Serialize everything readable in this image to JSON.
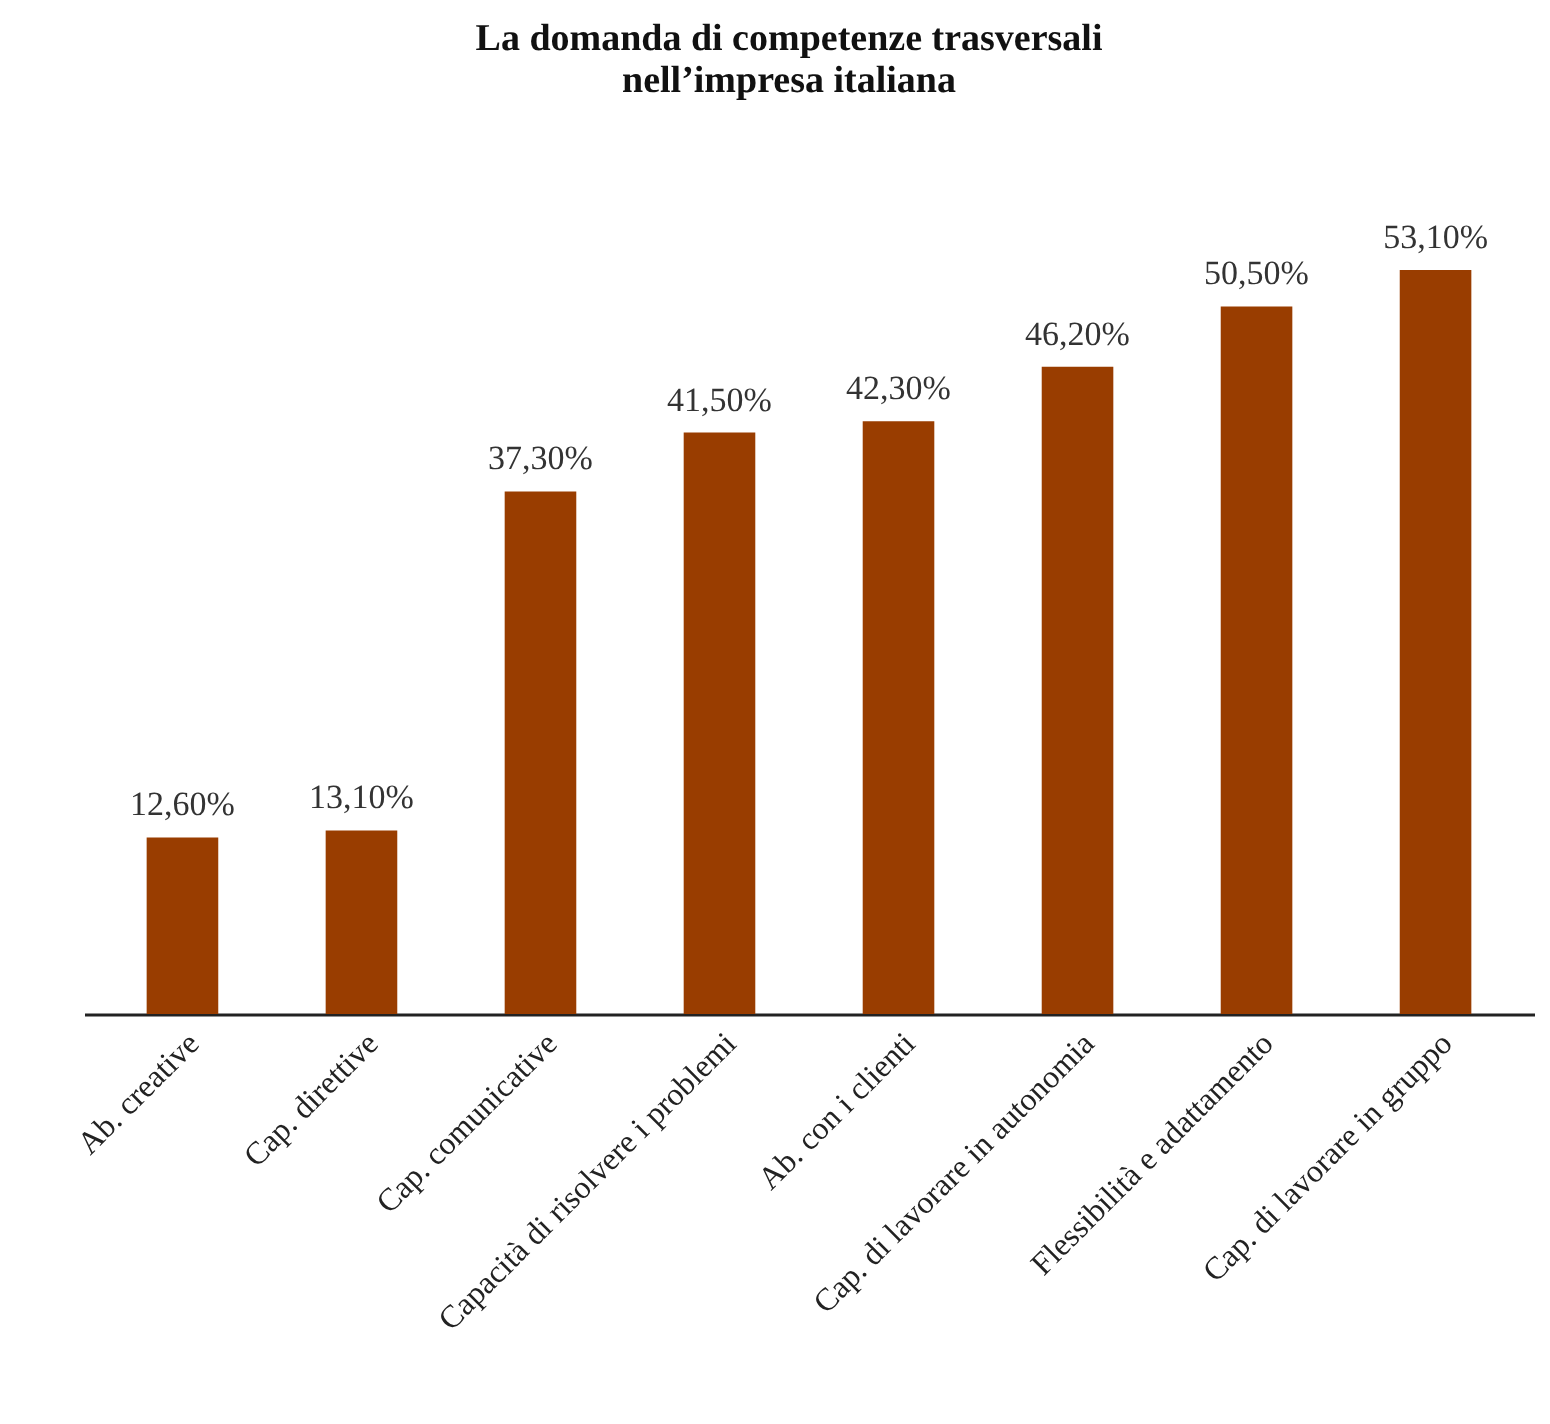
{
  "chart_data": {
    "type": "bar",
    "title": "La domanda di competenze trasversali nell’impresa italiana",
    "categories": [
      "Ab. creative",
      "Cap. direttive",
      "Cap. comunicative",
      "Capacità di risolvere i problemi",
      "Ab. con i clienti",
      "Cap. di lavorare in autonomia",
      "Flessibilità e adattamento",
      "Cap. di lavorare in gruppo"
    ],
    "values": [
      12.6,
      13.1,
      37.3,
      41.5,
      42.3,
      46.2,
      50.5,
      53.1
    ],
    "value_labels": [
      "12,60%",
      "13,10%",
      "37,30%",
      "41,50%",
      "42,30%",
      "46,20%",
      "50,50%",
      "53,10%"
    ],
    "color": "#993d00"
  }
}
